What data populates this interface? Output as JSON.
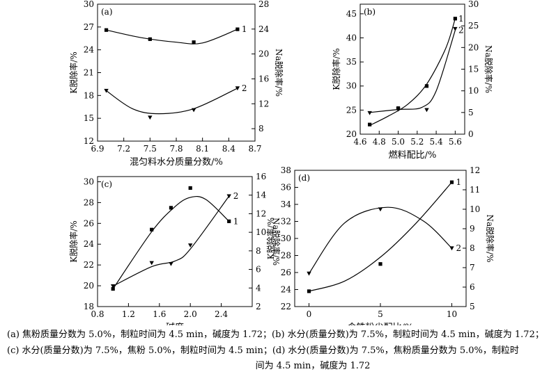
{
  "chart_data": [
    {
      "type": "scatter",
      "panel_label": "(a)",
      "xlabel": "混匀料水分质量分数/%",
      "ylabel_left": "K脱除率/%",
      "ylabel_right": "Na脱除率/%",
      "xlim": [
        6.9,
        8.7
      ],
      "xticks": [
        "6.9",
        "7.2",
        "7.5",
        "7.8",
        "8.1",
        "8.4",
        "8.7"
      ],
      "ylim_left": [
        12,
        30
      ],
      "yticks_left": [
        "12",
        "15",
        "18",
        "21",
        "24",
        "27",
        "30"
      ],
      "ylim_right": [
        6,
        28
      ],
      "yticks_right": [
        "8",
        "12",
        "16",
        "20",
        "24",
        "28"
      ],
      "series": [
        {
          "name": "1",
          "axis": "left",
          "marker": "square",
          "x": [
            7.0,
            7.5,
            8.0,
            8.5
          ],
          "y": [
            26.6,
            25.4,
            25.0,
            26.7
          ],
          "curve": [
            [
              7.0,
              26.6
            ],
            [
              7.4,
              25.6
            ],
            [
              7.8,
              25.0
            ],
            [
              8.1,
              24.9
            ],
            [
              8.5,
              26.7
            ]
          ]
        },
        {
          "name": "2",
          "axis": "right",
          "marker": "triangle-down",
          "x": [
            7.0,
            7.5,
            8.0,
            8.5
          ],
          "y": [
            14.1,
            9.8,
            11.0,
            14.5
          ],
          "curve": [
            [
              7.0,
              14.1
            ],
            [
              7.3,
              11.2
            ],
            [
              7.6,
              10.4
            ],
            [
              8.0,
              11.2
            ],
            [
              8.5,
              14.5
            ]
          ]
        }
      ]
    },
    {
      "type": "scatter",
      "panel_label": "(b)",
      "xlabel": "燃料配比/%",
      "ylabel_left": "K脱除率/%",
      "ylabel_right": "Na脱除率/%",
      "xlim": [
        4.6,
        5.7
      ],
      "xticks": [
        "4.6",
        "4.8",
        "5.0",
        "5.2",
        "5.4",
        "5.6"
      ],
      "ylim_left": [
        20,
        47
      ],
      "yticks_left": [
        "20",
        "25",
        "30",
        "35",
        "40",
        "45"
      ],
      "ylim_right": [
        0,
        30
      ],
      "yticks_right": [
        "0",
        "5",
        "10",
        "15",
        "20",
        "25",
        "30"
      ],
      "series": [
        {
          "name": "1",
          "axis": "left",
          "marker": "square",
          "x": [
            4.7,
            5.0,
            5.3,
            5.6
          ],
          "y": [
            22.0,
            25.4,
            30.0,
            44.0
          ],
          "curve": [
            [
              4.7,
              21.8
            ],
            [
              4.9,
              23.8
            ],
            [
              5.1,
              26.2
            ],
            [
              5.3,
              30.4
            ],
            [
              5.5,
              37.8
            ],
            [
              5.6,
              44.0
            ]
          ]
        },
        {
          "name": "2",
          "axis": "right",
          "marker": "triangle-down",
          "x": [
            4.7,
            5.0,
            5.3,
            5.6
          ],
          "y": [
            4.9,
            5.7,
            5.6,
            24.3
          ],
          "curve": [
            [
              4.7,
              5.0
            ],
            [
              5.0,
              5.7
            ],
            [
              5.25,
              6.2
            ],
            [
              5.4,
              10.0
            ],
            [
              5.6,
              24.0
            ]
          ]
        }
      ]
    },
    {
      "type": "scatter",
      "panel_label": "(c)",
      "xlabel": "碱度",
      "ylabel_left": "K脱除率/%",
      "ylabel_right": "Na脱除率/%",
      "xlim": [
        0.8,
        2.8
      ],
      "xticks": [
        "0.8",
        "1.2",
        "1.6",
        "2.0",
        "2.4"
      ],
      "ylim_left": [
        18,
        30.5
      ],
      "yticks_left": [
        "18",
        "20",
        "22",
        "24",
        "26",
        "28",
        "30"
      ],
      "ylim_right": [
        2,
        16
      ],
      "yticks_right": [
        "2",
        "4",
        "6",
        "8",
        "10",
        "12",
        "14",
        "16"
      ],
      "series": [
        {
          "name": "1",
          "axis": "left",
          "marker": "square",
          "x": [
            1.0,
            1.5,
            1.75,
            2.0,
            2.5
          ],
          "y": [
            19.7,
            25.4,
            27.5,
            29.4,
            26.2
          ],
          "curve": [
            [
              1.0,
              19.7
            ],
            [
              1.5,
              25.2
            ],
            [
              1.8,
              27.6
            ],
            [
              2.0,
              28.5
            ],
            [
              2.2,
              28.3
            ],
            [
              2.5,
              26.2
            ]
          ]
        },
        {
          "name": "2",
          "axis": "right",
          "marker": "triangle-down",
          "x": [
            1.0,
            1.5,
            1.75,
            2.0,
            2.5
          ],
          "y": [
            4.2,
            6.7,
            6.6,
            8.6,
            13.9
          ],
          "curve": [
            [
              1.0,
              4.2
            ],
            [
              1.5,
              6.3
            ],
            [
              1.8,
              6.9
            ],
            [
              2.0,
              8.2
            ],
            [
              2.5,
              13.9
            ]
          ]
        }
      ]
    },
    {
      "type": "scatter",
      "panel_label": "(d)",
      "xlabel": "含铁粉尘配比/%",
      "ylabel_left": "K脱除率/%",
      "ylabel_right": "Na脱除率/%",
      "xlim": [
        -1,
        11
      ],
      "xticks": [
        "0",
        "5",
        "10"
      ],
      "ylim_left": [
        22,
        38
      ],
      "yticks_left": [
        "22",
        "24",
        "26",
        "28",
        "30",
        "32",
        "34",
        "36",
        "38"
      ],
      "ylim_right": [
        5,
        12
      ],
      "yticks_right": [
        "5",
        "6",
        "7",
        "8",
        "9",
        "10",
        "11",
        "12"
      ],
      "series": [
        {
          "name": "1",
          "axis": "left",
          "marker": "square",
          "x": [
            0,
            5,
            10
          ],
          "y": [
            23.8,
            27.0,
            36.6
          ],
          "curve": [
            [
              0,
              23.8
            ],
            [
              2.5,
              25.0
            ],
            [
              5,
              27.8
            ],
            [
              7.5,
              31.8
            ],
            [
              10,
              36.6
            ]
          ]
        },
        {
          "name": "2",
          "axis": "right",
          "marker": "triangle-down",
          "x": [
            0,
            5,
            10
          ],
          "y": [
            6.7,
            10.0,
            8.0
          ],
          "curve": [
            [
              0,
              6.7
            ],
            [
              2.5,
              9.3
            ],
            [
              5.5,
              10.1
            ],
            [
              8,
              9.4
            ],
            [
              10,
              8.0
            ]
          ]
        }
      ]
    }
  ],
  "caption": {
    "line1": "(a)  焦粉质量分数为 5.0%，制粒时间为 4.5 min，碱度为 1.72；(b)  水分(质量分数)为 7.5%，制粒时间为 4.5 min，碱度为 1.72；",
    "line2": "(c)  水分(质量分数)为 7.5%，焦粉 5.0%，制粒时间为 4.5 min；(d)  水分(质量分数)为 7.5%，焦粉质量分数为 5.0%，制粒时",
    "line3": "间为 4.5 min，碱度为 1.72"
  }
}
